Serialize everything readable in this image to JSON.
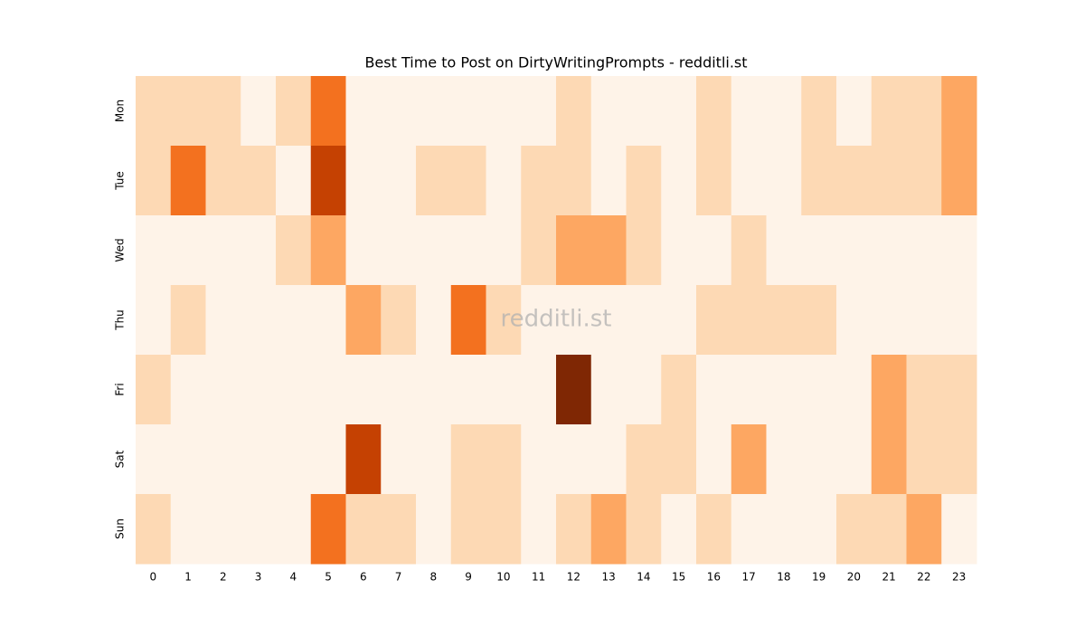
{
  "chart_data": {
    "type": "heatmap",
    "title": "Best Time to Post on DirtyWritingPrompts - redditli.st",
    "watermark": "redditli.st",
    "x_categories": [
      "0",
      "1",
      "2",
      "3",
      "4",
      "5",
      "6",
      "7",
      "8",
      "9",
      "10",
      "11",
      "12",
      "13",
      "14",
      "15",
      "16",
      "17",
      "18",
      "19",
      "20",
      "21",
      "22",
      "23"
    ],
    "y_categories": [
      "Mon",
      "Tue",
      "Wed",
      "Thu",
      "Fri",
      "Sat",
      "Sun"
    ],
    "values": [
      [
        1,
        1,
        1,
        0,
        1,
        3,
        0,
        0,
        0,
        0,
        0,
        0,
        1,
        0,
        0,
        0,
        1,
        0,
        0,
        1,
        0,
        1,
        1,
        2
      ],
      [
        1,
        3,
        1,
        1,
        0,
        4,
        0,
        0,
        1,
        1,
        0,
        1,
        1,
        0,
        1,
        0,
        1,
        0,
        0,
        1,
        1,
        1,
        1,
        2
      ],
      [
        0,
        0,
        0,
        0,
        1,
        2,
        0,
        0,
        0,
        0,
        0,
        1,
        2,
        2,
        1,
        0,
        0,
        1,
        0,
        0,
        0,
        0,
        0,
        0
      ],
      [
        0,
        1,
        0,
        0,
        0,
        0,
        2,
        1,
        0,
        3,
        1,
        0,
        0,
        0,
        0,
        0,
        1,
        1,
        1,
        1,
        0,
        0,
        0,
        0
      ],
      [
        1,
        0,
        0,
        0,
        0,
        0,
        0,
        0,
        0,
        0,
        0,
        0,
        5,
        0,
        0,
        1,
        0,
        0,
        0,
        0,
        0,
        2,
        1,
        1
      ],
      [
        0,
        0,
        0,
        0,
        0,
        0,
        4,
        0,
        0,
        1,
        1,
        0,
        0,
        0,
        1,
        1,
        0,
        2,
        0,
        0,
        0,
        2,
        1,
        1
      ],
      [
        1,
        0,
        0,
        0,
        0,
        3,
        1,
        1,
        0,
        1,
        1,
        0,
        1,
        2,
        1,
        0,
        1,
        0,
        0,
        0,
        1,
        1,
        2,
        0
      ]
    ],
    "vlim": [
      0,
      5
    ],
    "colors": [
      "#fef3e8",
      "#fdd9b4",
      "#fda762",
      "#f3711f",
      "#c54102",
      "#7f2704"
    ]
  }
}
